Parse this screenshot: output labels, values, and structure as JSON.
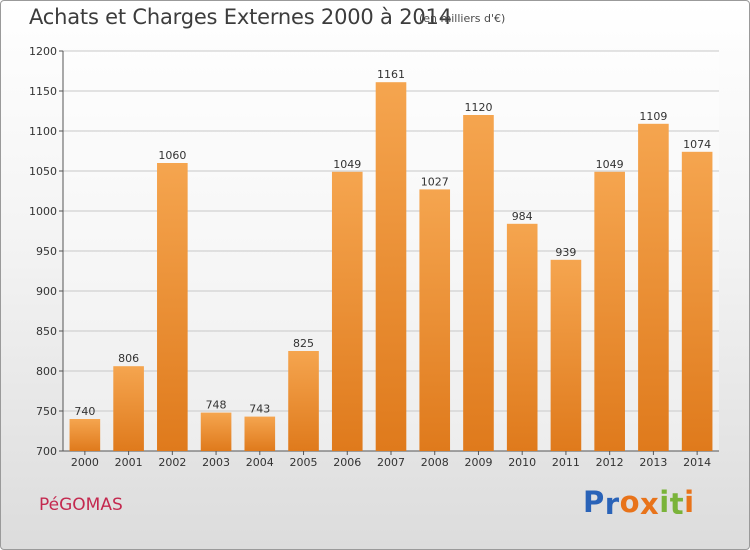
{
  "header": {
    "title": "Achats et Charges Externes 2000 à 2014",
    "subtitle": "(en milliers d'€)"
  },
  "footer": {
    "commune": "PéGOMAS",
    "logo_letters": [
      "P",
      "r",
      "o",
      "x",
      "i",
      "t",
      "i"
    ]
  },
  "colors": {
    "bar_top": "#f5a54f",
    "bar_bottom": "#df7a1c",
    "logo": [
      "#2a63b8",
      "#2a63b8",
      "#e8731a",
      "#e8731a",
      "#7ab33a",
      "#7ab33a",
      "#e8731a"
    ]
  },
  "chart_data": {
    "type": "bar",
    "title": "Achats et Charges Externes 2000 à 2014",
    "subtitle": "(en milliers d'€)",
    "categories": [
      "2000",
      "2001",
      "2002",
      "2003",
      "2004",
      "2005",
      "2006",
      "2007",
      "2008",
      "2009",
      "2010",
      "2011",
      "2012",
      "2013",
      "2014"
    ],
    "values": [
      740,
      806,
      1060,
      748,
      743,
      825,
      1049,
      1161,
      1027,
      1120,
      984,
      939,
      1049,
      1109,
      1074
    ],
    "ylim": [
      700,
      1200
    ],
    "yticks": [
      700,
      750,
      800,
      850,
      900,
      950,
      1000,
      1050,
      1100,
      1150,
      1200
    ],
    "grid": true,
    "xlabel": "",
    "ylabel": ""
  }
}
